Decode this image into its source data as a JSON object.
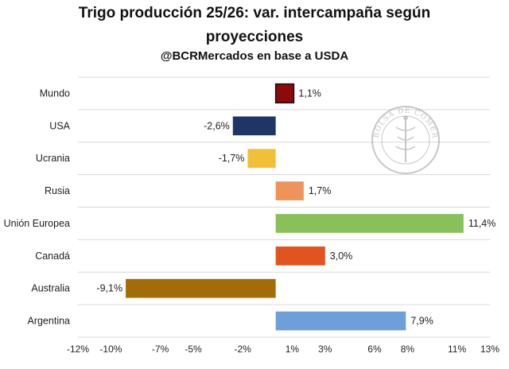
{
  "title_line1": "Trigo producción 25/26: var. intercampaña según",
  "title_line2": "proyecciones",
  "subtitle": "@BCRMercados en base a USDA",
  "seal": {
    "text": "BOLSA DE COMERCIO DE ROSARIO"
  },
  "chart_data": {
    "type": "bar",
    "orientation": "horizontal",
    "categories": [
      "Mundo",
      "USA",
      "Ucrania",
      "Rusia",
      "Unión Europea",
      "Canadá",
      "Australia",
      "Argentina"
    ],
    "values": [
      1.1,
      -2.6,
      -1.7,
      1.7,
      11.4,
      3.0,
      -9.1,
      7.9
    ],
    "value_labels": [
      "1,1%",
      "-2,6%",
      "-1,7%",
      "1,7%",
      "11,4%",
      "3,0%",
      "-9,1%",
      "7,9%"
    ],
    "colors": [
      "#8b0a0a",
      "#1f3566",
      "#f2c038",
      "#ee935b",
      "#8ac05a",
      "#e0541f",
      "#a36c08",
      "#6f9fd8"
    ],
    "xlim": [
      -12,
      13
    ],
    "xticks": [
      -12,
      -10,
      -7,
      -5,
      -2,
      1,
      3,
      6,
      8,
      11,
      13
    ],
    "xtick_labels": [
      "-12%",
      "-10%",
      "-7%",
      "-5%",
      "-2%",
      "1%",
      "3%",
      "6%",
      "8%",
      "11%",
      "13%"
    ],
    "grid": "horizontal",
    "title": "Trigo producción 25/26: var. intercampaña según proyecciones",
    "subtitle": "@BCRMercados en base a USDA",
    "xlabel": "",
    "ylabel": ""
  }
}
